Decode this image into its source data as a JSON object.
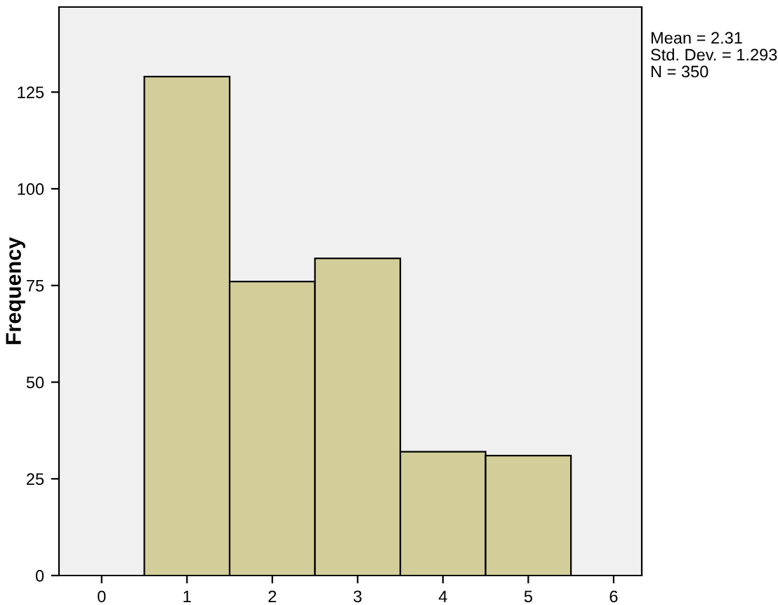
{
  "chart_data": {
    "type": "histogram",
    "ylabel": "Frequency",
    "bins": [
      0.5,
      1.5,
      2.5,
      3.5,
      4.5,
      5.5
    ],
    "values": [
      129,
      76,
      82,
      32,
      31
    ],
    "color": "#d3ce99",
    "xlim": [
      -0.5,
      6.33
    ],
    "xticks": [
      0,
      1,
      2,
      3,
      4,
      5,
      6
    ],
    "ylim": [
      0,
      147
    ],
    "yticks": [
      0,
      25,
      50,
      75,
      100,
      125
    ],
    "grid": false,
    "annotations": [
      "Mean = 2.31",
      "Std. Dev. = 1.293",
      "N = 350"
    ]
  }
}
